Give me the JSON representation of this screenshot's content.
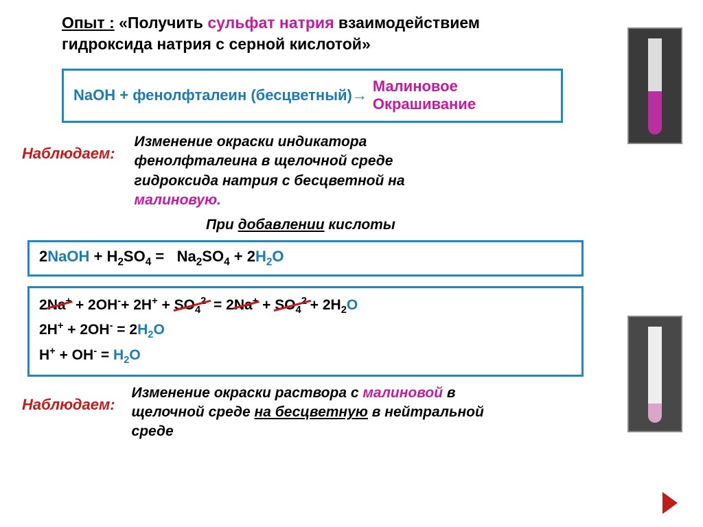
{
  "title": {
    "label": "Опыт :",
    "before": "«Получить",
    "sulfate": "сульфат натрия",
    "after": "взаимодействием",
    "line2": "гидроксида   натрия   с серной кислотой»"
  },
  "box1": {
    "lhs": "NaOH + фенолфталеин (бесцветный)→",
    "rhs1": "Малиновое",
    "rhs2": "Окрашивание"
  },
  "observe1": {
    "label": "Наблюдаем:",
    "text1": "Изменение окраски индикатора",
    "text2": "фенолфталеина в щелочной среде",
    "text3": "гидроксида натрия с бесцветной на",
    "mal": "малиновую."
  },
  "addacid": {
    "pre": "При ",
    "add": "добавлении",
    "post": " кислоты"
  },
  "box2": {
    "pre": "2",
    "naoh": "NaOH",
    "mid": " + H",
    "so4": "SO",
    "eq": " = ",
    "na2so4": "Na",
    "plus": " + 2",
    "h2o": "H",
    "o": "O"
  },
  "box3": {
    "l1a": "2",
    "l1na": "Na",
    "l1b": " + 2OH",
    "l1c": "+ 2H",
    "l1d": " + ",
    "l1so4": "SO",
    "l1e": " = 2",
    "l1na2": "Na",
    "l1f": " + ",
    "l1so42": "SO",
    "l1g": "+ 2H",
    "l2a": "2H",
    "l2b": " + 2OH",
    "l2c": "  =  2",
    "l2h2o": "H",
    "l3a": "H",
    "l3b": " + OH",
    "l3c": "   =  ",
    "l3h2o": "H"
  },
  "observe2": {
    "label": "Наблюдаем:",
    "t1": "Изменение окраски раствора с ",
    "mal": "малиновой",
    "t2": "   в",
    "t3a": "щелочной среде ",
    "t3u": "на бесцветную",
    "t3b": " в нейтральной",
    "t4": "среде"
  },
  "colors": {
    "blue": "#1a7bb5",
    "magenta": "#c21ba0",
    "red": "#c21b1b",
    "border": "#1e88c7"
  }
}
